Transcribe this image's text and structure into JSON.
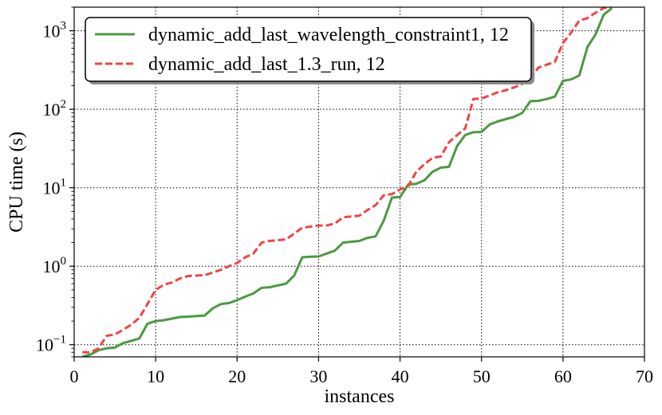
{
  "chart_data": {
    "type": "line",
    "xlabel": "instances",
    "ylabel": "CPU time (s)",
    "xlim": [
      0,
      70
    ],
    "ylim": [
      0.07,
      2000
    ],
    "yscale": "log",
    "grid": true,
    "legend_position": "top-left",
    "x_ticks": [
      {
        "value": 0,
        "label": "0"
      },
      {
        "value": 10,
        "label": "10"
      },
      {
        "value": 20,
        "label": "20"
      },
      {
        "value": 30,
        "label": "30"
      },
      {
        "value": 40,
        "label": "40"
      },
      {
        "value": 50,
        "label": "50"
      },
      {
        "value": 60,
        "label": "60"
      },
      {
        "value": 70,
        "label": "70"
      }
    ],
    "y_ticks": [
      {
        "value": 0.1,
        "base": "10",
        "exp": "−1"
      },
      {
        "value": 1,
        "base": "10",
        "exp": "0"
      },
      {
        "value": 10,
        "base": "10",
        "exp": "1"
      },
      {
        "value": 100,
        "base": "10",
        "exp": "2"
      },
      {
        "value": 1000,
        "base": "10",
        "exp": "3"
      }
    ],
    "series": [
      {
        "name": "dynamic_add_last_wavelength_constraint1, 12",
        "color": "#4a9a40",
        "dash": "solid",
        "x": [
          1,
          2,
          3,
          4,
          5,
          6,
          7,
          8,
          9,
          10,
          11,
          12,
          13,
          14,
          15,
          16,
          17,
          18,
          19,
          20,
          21,
          22,
          23,
          24,
          25,
          26,
          27,
          28,
          29,
          30,
          31,
          32,
          33,
          34,
          35,
          36,
          37,
          38,
          39,
          40,
          41,
          42,
          43,
          44,
          45,
          46,
          47,
          48,
          49,
          50,
          51,
          52,
          53,
          54,
          55,
          56,
          57,
          58,
          59,
          60,
          61,
          62,
          63,
          64,
          65,
          66
        ],
        "values": [
          0.07,
          0.075,
          0.085,
          0.09,
          0.092,
          0.105,
          0.112,
          0.12,
          0.185,
          0.2,
          0.205,
          0.215,
          0.225,
          0.228,
          0.232,
          0.235,
          0.29,
          0.33,
          0.34,
          0.37,
          0.41,
          0.45,
          0.53,
          0.54,
          0.57,
          0.6,
          0.76,
          1.3,
          1.32,
          1.33,
          1.45,
          1.58,
          2.0,
          2.05,
          2.1,
          2.3,
          2.4,
          3.8,
          7.5,
          7.6,
          11.0,
          11.2,
          12.5,
          16.0,
          18.0,
          18.5,
          34.0,
          47.0,
          51.0,
          51.5,
          64.0,
          70.0,
          75.0,
          80.0,
          90.0,
          127.0,
          128.0,
          135.0,
          145.0,
          230.0,
          240.0,
          270.0,
          620.0,
          900.0,
          1600.0,
          1950.0
        ]
      },
      {
        "name": "dynamic_add_last_1.3_run, 12",
        "color": "#f04545",
        "dash": "dashed",
        "x": [
          1,
          2,
          3,
          4,
          5,
          6,
          7,
          8,
          9,
          10,
          11,
          12,
          13,
          14,
          15,
          16,
          17,
          18,
          19,
          20,
          21,
          22,
          23,
          24,
          25,
          26,
          27,
          28,
          29,
          30,
          31,
          32,
          33,
          34,
          35,
          36,
          37,
          38,
          39,
          40,
          41,
          42,
          43,
          44,
          45,
          46,
          47,
          48,
          49,
          50,
          51,
          52,
          53,
          54,
          55,
          56,
          57,
          58,
          59,
          60,
          61,
          62,
          63,
          64,
          65,
          66
        ],
        "values": [
          0.08,
          0.08,
          0.09,
          0.13,
          0.135,
          0.155,
          0.18,
          0.22,
          0.33,
          0.5,
          0.58,
          0.62,
          0.7,
          0.75,
          0.76,
          0.77,
          0.83,
          0.9,
          1.0,
          1.1,
          1.3,
          1.45,
          2.0,
          2.1,
          2.15,
          2.2,
          2.6,
          3.1,
          3.2,
          3.3,
          3.3,
          3.5,
          4.2,
          4.3,
          4.4,
          5.2,
          6.0,
          8.0,
          8.3,
          9.5,
          10.5,
          16.0,
          20.0,
          24.0,
          25.0,
          38.0,
          47.0,
          57.0,
          135.0,
          137.0,
          150.0,
          165.0,
          175.0,
          190.0,
          210.0,
          250.0,
          340.0,
          370.0,
          400.0,
          700.0,
          950.0,
          1350.0,
          1450.0,
          1700.0,
          1950.0,
          2000.0
        ]
      }
    ]
  }
}
